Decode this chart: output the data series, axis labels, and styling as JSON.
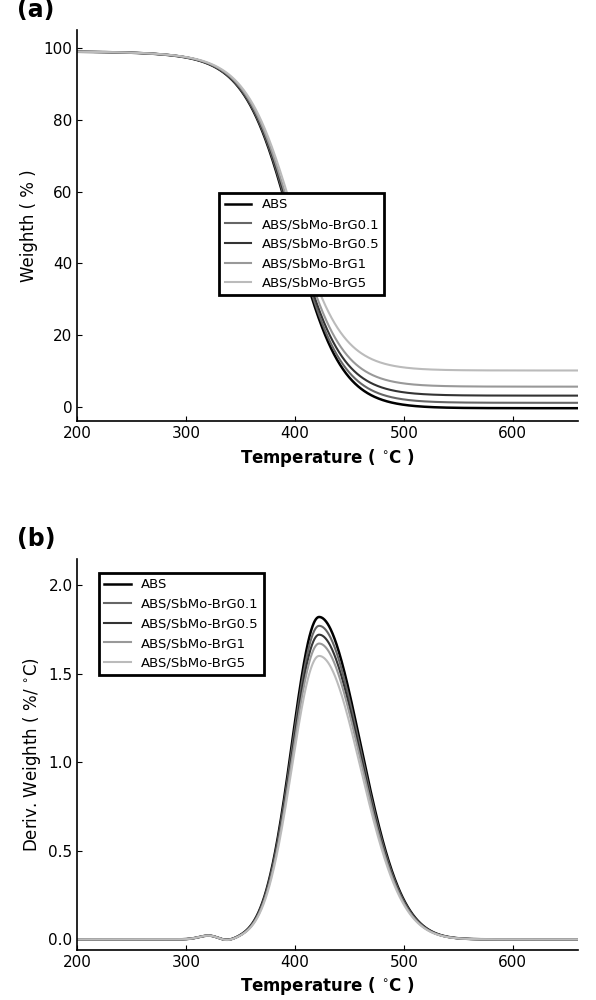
{
  "panel_a_label": "(a)",
  "panel_b_label": "(b)",
  "xlabel": "Temperature ( $^{\\circ}$C )",
  "ylabel_a": "Weighth ( % )",
  "ylabel_b": "Deriv. Weighth ( %/ $^{\\circ}$C)",
  "xlim": [
    200,
    660
  ],
  "ylim_a": [
    -4,
    105
  ],
  "ylim_b": [
    -0.06,
    2.15
  ],
  "yticks_a": [
    0,
    20,
    40,
    60,
    80,
    100
  ],
  "yticks_b": [
    0.0,
    0.5,
    1.0,
    1.5,
    2.0
  ],
  "xticks": [
    200,
    300,
    400,
    500,
    600
  ],
  "legend_labels": [
    "ABS",
    "ABS/SbMo-BrG0.1",
    "ABS/SbMo-BrG0.5",
    "ABS/SbMo-BrG1",
    "ABS/SbMo-BrG5"
  ],
  "line_colors": [
    "#000000",
    "#666666",
    "#333333",
    "#999999",
    "#bbbbbb"
  ],
  "line_widths": [
    1.8,
    1.5,
    1.5,
    1.5,
    1.5
  ],
  "residuals_a": [
    0.5,
    2.0,
    4.0,
    6.5,
    11.0
  ],
  "sigmoid_centers": [
    398,
    398,
    398,
    398,
    398
  ],
  "sigmoid_widths": [
    22,
    22,
    22,
    22,
    22
  ],
  "peak_centers_b": [
    422,
    422,
    422,
    422,
    422
  ],
  "peak_heights_b": [
    1.82,
    1.77,
    1.72,
    1.67,
    1.6
  ],
  "peak_left_widths": [
    25,
    25,
    25,
    25,
    25
  ],
  "peak_right_widths": [
    38,
    38,
    38,
    38,
    38
  ],
  "background_color": "#ffffff",
  "fig_width": 5.96,
  "fig_height": 10.0,
  "dpi": 100
}
